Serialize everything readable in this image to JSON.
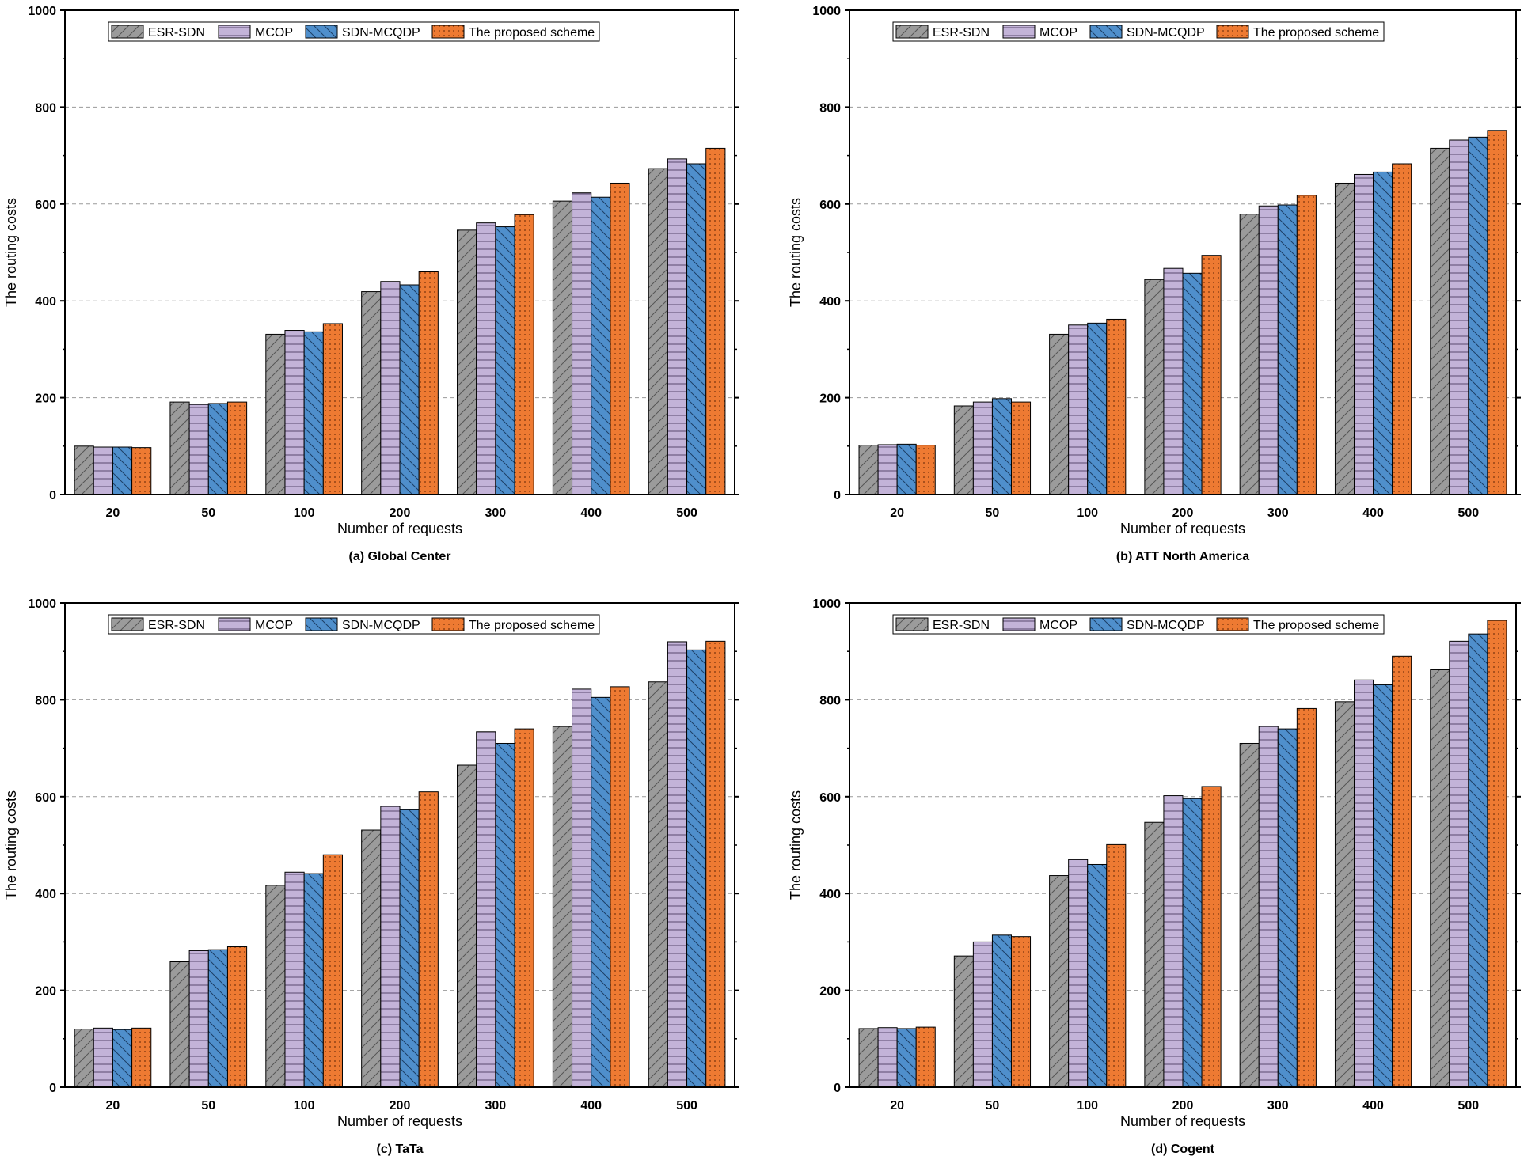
{
  "series_names": [
    "ESR-SDN",
    "MCOP",
    "SDN-MCQDP",
    "The proposed scheme"
  ],
  "series_colors": [
    "#9b9b9b",
    "#c3b3d8",
    "#4f8fcc",
    "#ee7a32"
  ],
  "chart_data": [
    {
      "type": "bar",
      "caption": "(a) Global Center",
      "xlabel": "Number of requests",
      "ylabel": "The routing costs",
      "ylim": [
        0,
        1000
      ],
      "yticks": [
        0,
        200,
        400,
        600,
        800,
        1000
      ],
      "grid": true,
      "legend": "top-left",
      "categories": [
        "20",
        "50",
        "100",
        "200",
        "300",
        "400",
        "500"
      ],
      "series": [
        {
          "name": "ESR-SDN",
          "values": [
            100,
            191,
            331,
            419,
            546,
            606,
            673
          ]
        },
        {
          "name": "MCOP",
          "values": [
            98,
            186,
            339,
            440,
            561,
            623,
            693
          ]
        },
        {
          "name": "SDN-MCQDP",
          "values": [
            98,
            188,
            336,
            433,
            553,
            614,
            683
          ]
        },
        {
          "name": "The proposed scheme",
          "values": [
            97,
            191,
            353,
            460,
            578,
            643,
            715
          ]
        }
      ]
    },
    {
      "type": "bar",
      "caption": "(b) ATT North America",
      "xlabel": "Number of requests",
      "ylabel": "The routing costs",
      "ylim": [
        0,
        1000
      ],
      "yticks": [
        0,
        200,
        400,
        600,
        800,
        1000
      ],
      "grid": true,
      "legend": "top-left",
      "categories": [
        "20",
        "50",
        "100",
        "200",
        "300",
        "400",
        "500"
      ],
      "series": [
        {
          "name": "ESR-SDN",
          "values": [
            102,
            183,
            331,
            444,
            579,
            643,
            715
          ]
        },
        {
          "name": "MCOP",
          "values": [
            103,
            191,
            350,
            467,
            596,
            661,
            732
          ]
        },
        {
          "name": "SDN-MCQDP",
          "values": [
            104,
            198,
            354,
            457,
            598,
            666,
            738
          ]
        },
        {
          "name": "The proposed scheme",
          "values": [
            102,
            191,
            362,
            494,
            618,
            683,
            752
          ]
        }
      ]
    },
    {
      "type": "bar",
      "caption": "(c) TaTa",
      "xlabel": "Number of requests",
      "ylabel": "The routing costs",
      "ylim": [
        0,
        1000
      ],
      "yticks": [
        0,
        200,
        400,
        600,
        800,
        1000
      ],
      "grid": true,
      "legend": "top-left",
      "categories": [
        "20",
        "50",
        "100",
        "200",
        "300",
        "400",
        "500"
      ],
      "series": [
        {
          "name": "ESR-SDN",
          "values": [
            120,
            259,
            417,
            531,
            665,
            745,
            837
          ]
        },
        {
          "name": "MCOP",
          "values": [
            122,
            282,
            444,
            580,
            734,
            822,
            920
          ]
        },
        {
          "name": "SDN-MCQDP",
          "values": [
            119,
            284,
            441,
            573,
            710,
            805,
            903
          ]
        },
        {
          "name": "The proposed scheme",
          "values": [
            122,
            290,
            480,
            610,
            740,
            827,
            921
          ]
        }
      ]
    },
    {
      "type": "bar",
      "caption": "(d) Cogent",
      "xlabel": "Number of requests",
      "ylabel": "The routing costs",
      "ylim": [
        0,
        1000
      ],
      "yticks": [
        0,
        200,
        400,
        600,
        800,
        1000
      ],
      "grid": true,
      "legend": "top-left",
      "categories": [
        "20",
        "50",
        "100",
        "200",
        "300",
        "400",
        "500"
      ],
      "series": [
        {
          "name": "ESR-SDN",
          "values": [
            121,
            271,
            437,
            547,
            710,
            796,
            862
          ]
        },
        {
          "name": "MCOP",
          "values": [
            123,
            300,
            470,
            602,
            745,
            841,
            921
          ]
        },
        {
          "name": "SDN-MCQDP",
          "values": [
            121,
            314,
            460,
            596,
            740,
            831,
            936
          ]
        },
        {
          "name": "The proposed scheme",
          "values": [
            124,
            311,
            501,
            621,
            782,
            890,
            964
          ]
        }
      ]
    }
  ]
}
